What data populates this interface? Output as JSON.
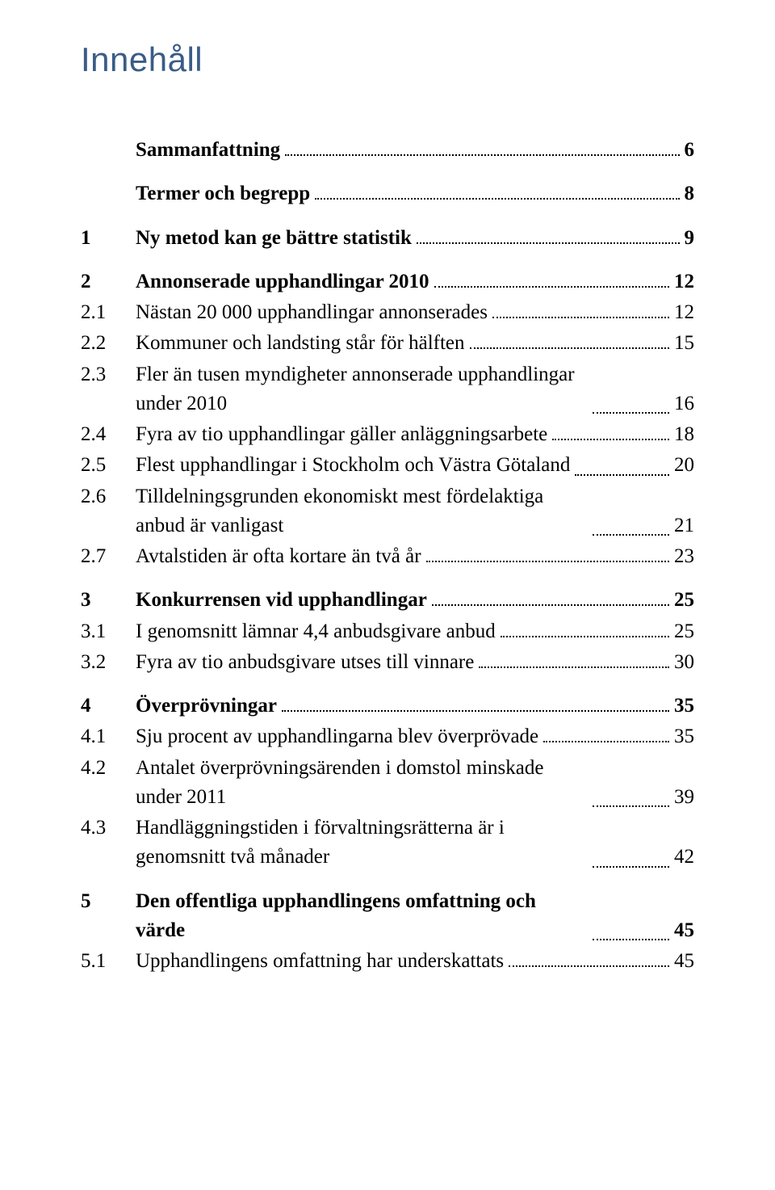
{
  "title": "Innehåll",
  "colors": {
    "title": "#3a5c86",
    "text": "#000000",
    "background": "#ffffff",
    "leader": "#000000"
  },
  "typography": {
    "title_family": "Candara, sans-serif",
    "body_family": "Palatino Linotype, serif",
    "title_fontsize_pt": 32,
    "body_fontsize_pt": 19
  },
  "toc": [
    {
      "num": "",
      "text": "Sammanfattning",
      "page": "6",
      "bold": true,
      "gap": false
    },
    {
      "num": "",
      "text": "Termer och begrepp",
      "page": "8",
      "bold": true,
      "gap": true
    },
    {
      "num": "1",
      "text": "Ny metod kan ge bättre statistik",
      "page": "9",
      "bold": true,
      "gap": true
    },
    {
      "num": "2",
      "text": "Annonserade upphandlingar 2010",
      "page": "12",
      "bold": true,
      "gap": true
    },
    {
      "num": "2.1",
      "text": "Nästan 20 000 upphandlingar annonserades",
      "page": "12",
      "bold": false,
      "gap": false
    },
    {
      "num": "2.2",
      "text": "Kommuner och landsting står för hälften",
      "page": "15",
      "bold": false,
      "gap": false
    },
    {
      "num": "2.3",
      "text": "Fler än tusen myndigheter annonserade upphandlingar under 2010",
      "page": "16",
      "bold": false,
      "gap": false,
      "multiline": true
    },
    {
      "num": "2.4",
      "text": "Fyra av tio upphandlingar gäller anläggningsarbete",
      "page": "18",
      "bold": false,
      "gap": false
    },
    {
      "num": "2.5",
      "text": "Flest upphandlingar i Stockholm och Västra Götaland",
      "page": "20",
      "bold": false,
      "gap": false,
      "multiline": true
    },
    {
      "num": "2.6",
      "text": "Tilldelningsgrunden ekonomiskt mest fördelaktiga anbud är vanligast",
      "page": "21",
      "bold": false,
      "gap": false,
      "multiline": true
    },
    {
      "num": "2.7",
      "text": "Avtalstiden är ofta kortare än två år",
      "page": "23",
      "bold": false,
      "gap": false
    },
    {
      "num": "3",
      "text": "Konkurrensen vid upphandlingar",
      "page": "25",
      "bold": true,
      "gap": true
    },
    {
      "num": "3.1",
      "text": "I genomsnitt lämnar 4,4 anbudsgivare anbud",
      "page": "25",
      "bold": false,
      "gap": false
    },
    {
      "num": "3.2",
      "text": "Fyra av tio anbudsgivare utses till vinnare",
      "page": "30",
      "bold": false,
      "gap": false
    },
    {
      "num": "4",
      "text": "Överprövningar",
      "page": "35",
      "bold": true,
      "gap": true
    },
    {
      "num": "4.1",
      "text": "Sju procent av upphandlingarna blev överprövade",
      "page": "35",
      "bold": false,
      "gap": false
    },
    {
      "num": "4.2",
      "text": "Antalet överprövningsärenden i domstol minskade under 2011",
      "page": "39",
      "bold": false,
      "gap": false,
      "multiline": true
    },
    {
      "num": "4.3",
      "text": "Handläggningstiden i förvaltningsrätterna är i genomsnitt två månader",
      "page": "42",
      "bold": false,
      "gap": false,
      "multiline": true
    },
    {
      "num": "5",
      "text": "Den offentliga upphandlingens omfattning och värde",
      "page": "45",
      "bold": true,
      "gap": true,
      "multiline": true
    },
    {
      "num": "5.1",
      "text": "Upphandlingens omfattning har underskattats",
      "page": "45",
      "bold": false,
      "gap": false
    }
  ]
}
